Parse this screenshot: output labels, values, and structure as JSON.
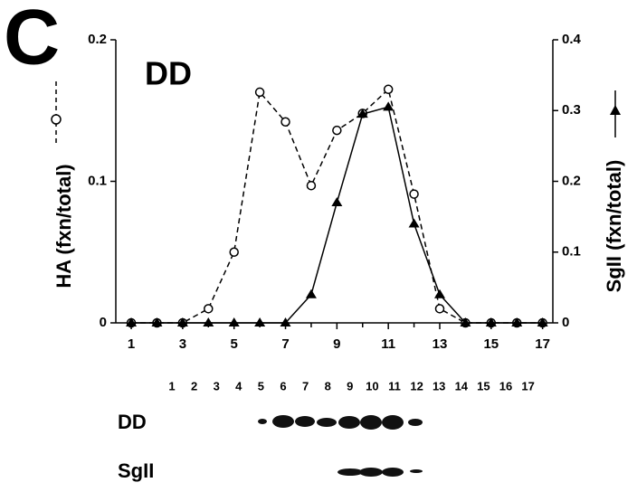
{
  "chart_data": {
    "type": "line",
    "panel_label": "C",
    "annotation": "DD",
    "ylabel": "HA (fxn/total)",
    "y2label": "SgII (fxn/total)",
    "x": [
      1,
      2,
      3,
      4,
      5,
      6,
      7,
      8,
      9,
      10,
      11,
      12,
      13,
      14,
      15,
      16,
      17
    ],
    "xlim": [
      0.4,
      17.4
    ],
    "xticks": [
      1,
      3,
      5,
      7,
      9,
      11,
      13,
      15,
      17
    ],
    "x_minor_ticks": [
      2,
      4,
      6,
      8,
      10,
      12,
      14,
      16
    ],
    "ylim": [
      0,
      0.2
    ],
    "yticks": [
      0,
      0.1,
      0.2
    ],
    "y2lim": [
      0,
      0.4
    ],
    "y2ticks": [
      0,
      0.1,
      0.2,
      0.3,
      0.4
    ],
    "series": [
      {
        "color": "#000000",
        "marker": "circle",
        "dashed": true,
        "values": [
          0,
          0,
          0,
          0.01,
          0.05,
          0.163,
          0.142,
          0.097,
          0.136,
          0.148,
          0.165,
          0.091,
          0.01,
          0,
          0,
          0,
          0
        ]
      },
      {
        "color": "#000000",
        "marker": "triangle",
        "dashed": false,
        "axis": "y2",
        "values": [
          0,
          0,
          0,
          0,
          0,
          0,
          0,
          0.04,
          0.17,
          0.295,
          0.305,
          0.14,
          0.04,
          0,
          0,
          0,
          0
        ]
      }
    ]
  },
  "gel": {
    "lanes": [
      1,
      2,
      3,
      4,
      5,
      6,
      7,
      8,
      9,
      10,
      11,
      12,
      13,
      14,
      15,
      16,
      17
    ],
    "rows": [
      "DD",
      "SgII"
    ]
  }
}
